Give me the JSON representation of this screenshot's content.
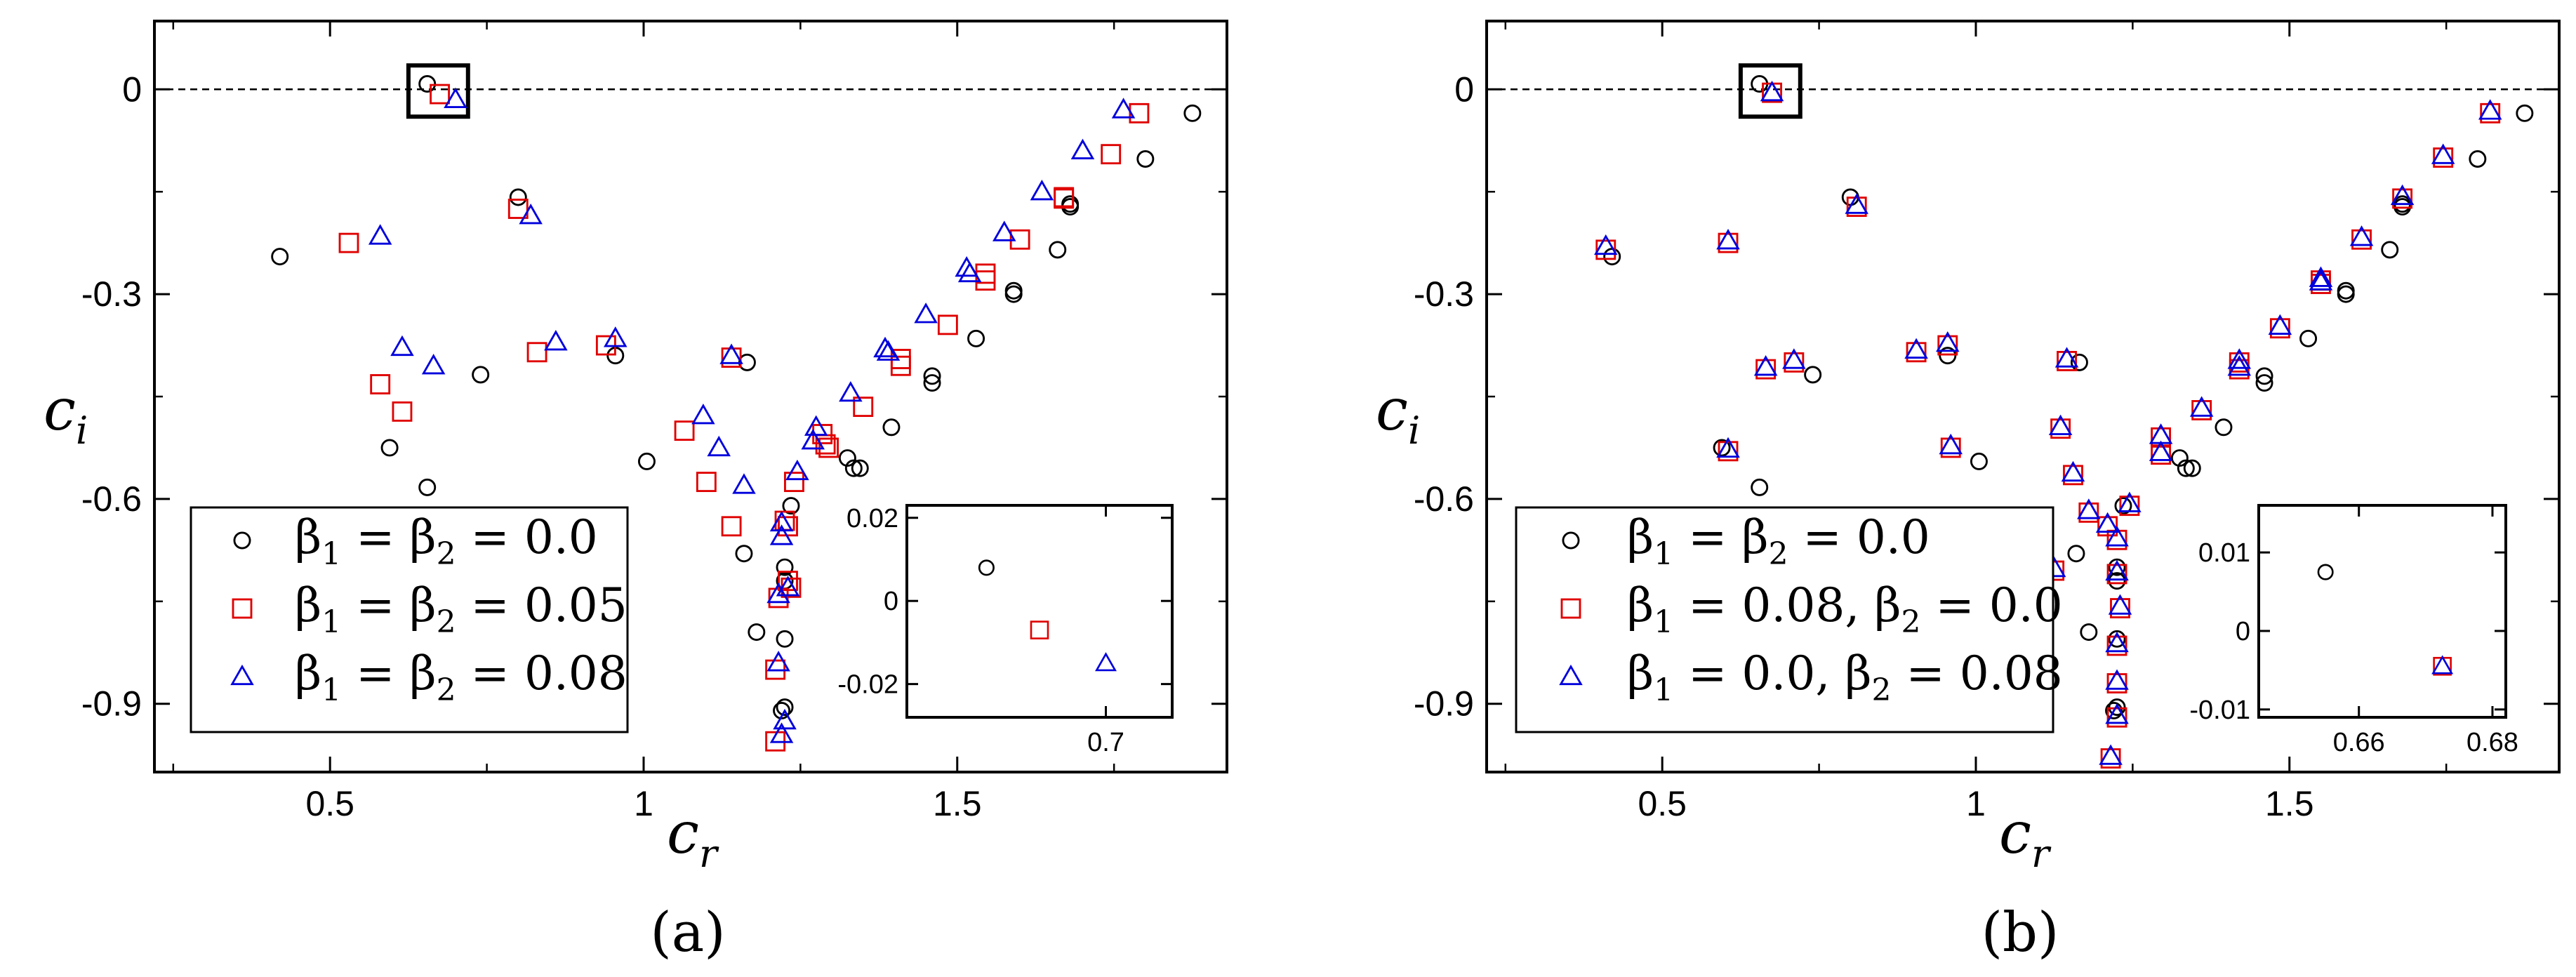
{
  "chart_data": [
    {
      "panel": "(a)",
      "type": "scatter",
      "xlabel": "c",
      "xlabel_sub": "r",
      "ylabel": "c",
      "ylabel_sub": "i",
      "xlim": [
        0.22,
        1.93
      ],
      "ylim": [
        -1.0,
        0.1
      ],
      "xticks": [
        0.5,
        1,
        1.5
      ],
      "xtick_labels": [
        "0.5",
        "1",
        "1.5"
      ],
      "yticks": [
        0,
        -0.3,
        -0.6,
        -0.9
      ],
      "ytick_labels": [
        "0",
        "-0.3",
        "-0.6",
        "-0.9"
      ],
      "legend_position": "bottom-left",
      "series": [
        {
          "name": "β1 = β2 = 0.0",
          "legend": [
            "β",
            "1",
            " = β",
            "2",
            " = 0.0"
          ],
          "marker": "circle",
          "color": "#000000",
          "points": [
            [
              0.655,
              0.008
            ],
            [
              0.8,
              -0.158
            ],
            [
              0.42,
              -0.245
            ],
            [
              0.74,
              -0.418
            ],
            [
              0.955,
              -0.39
            ],
            [
              1.165,
              -0.4
            ],
            [
              0.595,
              -0.525
            ],
            [
              0.655,
              -0.583
            ],
            [
              1.005,
              -0.545
            ],
            [
              1.335,
              -0.555
            ],
            [
              1.325,
              -0.54
            ],
            [
              1.345,
              -0.555
            ],
            [
              1.395,
              -0.495
            ],
            [
              1.235,
              -0.61
            ],
            [
              1.16,
              -0.68
            ],
            [
              1.18,
              -0.795
            ],
            [
              1.225,
              -0.7
            ],
            [
              1.225,
              -0.72
            ],
            [
              1.225,
              -0.805
            ],
            [
              1.225,
              -0.905
            ],
            [
              1.22,
              -0.91
            ],
            [
              1.46,
              -0.42
            ],
            [
              1.46,
              -0.43
            ],
            [
              1.53,
              -0.365
            ],
            [
              1.59,
              -0.295
            ],
            [
              1.59,
              -0.3
            ],
            [
              1.66,
              -0.235
            ],
            [
              1.68,
              -0.168
            ],
            [
              1.68,
              -0.172
            ],
            [
              1.8,
              -0.102
            ],
            [
              1.875,
              -0.035
            ]
          ]
        },
        {
          "name": "β1 = β2 = 0.05",
          "legend": [
            "β",
            "1",
            " = β",
            "2",
            " = 0.05"
          ],
          "marker": "square",
          "color": "#e00000",
          "points": [
            [
              0.675,
              -0.007
            ],
            [
              0.53,
              -0.225
            ],
            [
              0.8,
              -0.175
            ],
            [
              0.58,
              -0.432
            ],
            [
              0.615,
              -0.472
            ],
            [
              0.83,
              -0.385
            ],
            [
              0.94,
              -0.375
            ],
            [
              1.14,
              -0.393
            ],
            [
              1.065,
              -0.5
            ],
            [
              1.1,
              -0.575
            ],
            [
              1.14,
              -0.64
            ],
            [
              1.215,
              -0.745
            ],
            [
              1.21,
              -0.85
            ],
            [
              1.21,
              -0.955
            ],
            [
              1.225,
              -0.632
            ],
            [
              1.23,
              -0.64
            ],
            [
              1.23,
              -0.72
            ],
            [
              1.235,
              -0.73
            ],
            [
              1.24,
              -0.575
            ],
            [
              1.285,
              -0.505
            ],
            [
              1.29,
              -0.52
            ],
            [
              1.295,
              -0.525
            ],
            [
              1.35,
              -0.465
            ],
            [
              1.41,
              -0.395
            ],
            [
              1.41,
              -0.405
            ],
            [
              1.485,
              -0.345
            ],
            [
              1.545,
              -0.27
            ],
            [
              1.545,
              -0.28
            ],
            [
              1.6,
              -0.22
            ],
            [
              1.67,
              -0.158
            ],
            [
              1.67,
              -0.16
            ],
            [
              1.745,
              -0.095
            ],
            [
              1.79,
              -0.035
            ]
          ]
        },
        {
          "name": "β1 = β2 = 0.08",
          "legend": [
            "β",
            "1",
            " = β",
            "2",
            " = 0.08"
          ],
          "marker": "triangle",
          "color": "#0000dd",
          "points": [
            [
              0.7,
              -0.015
            ],
            [
              0.58,
              -0.215
            ],
            [
              0.82,
              -0.185
            ],
            [
              0.615,
              -0.378
            ],
            [
              0.665,
              -0.405
            ],
            [
              0.86,
              -0.37
            ],
            [
              0.955,
              -0.365
            ],
            [
              1.14,
              -0.39
            ],
            [
              1.095,
              -0.478
            ],
            [
              1.12,
              -0.525
            ],
            [
              1.16,
              -0.58
            ],
            [
              1.22,
              -0.635
            ],
            [
              1.22,
              -0.655
            ],
            [
              1.215,
              -0.74
            ],
            [
              1.215,
              -0.84
            ],
            [
              1.22,
              -0.945
            ],
            [
              1.225,
              -0.925
            ],
            [
              1.23,
              -0.73
            ],
            [
              1.245,
              -0.56
            ],
            [
              1.27,
              -0.515
            ],
            [
              1.275,
              -0.495
            ],
            [
              1.33,
              -0.445
            ],
            [
              1.385,
              -0.38
            ],
            [
              1.39,
              -0.385
            ],
            [
              1.45,
              -0.33
            ],
            [
              1.515,
              -0.262
            ],
            [
              1.52,
              -0.27
            ],
            [
              1.575,
              -0.21
            ],
            [
              1.635,
              -0.15
            ],
            [
              1.7,
              -0.09
            ],
            [
              1.765,
              -0.03
            ]
          ]
        }
      ],
      "inset": {
        "xlim": [
          0.625,
          0.725
        ],
        "ylim": [
          -0.028,
          0.023
        ],
        "xticks": [
          0.7
        ],
        "xtick_labels": [
          "0.7"
        ],
        "yticks": [
          0.02,
          0,
          -0.02
        ],
        "ytick_labels": [
          "0.02",
          "0",
          "-0.02"
        ],
        "points": [
          {
            "series": 0,
            "x": 0.655,
            "y": 0.008
          },
          {
            "series": 1,
            "x": 0.675,
            "y": -0.007
          },
          {
            "series": 2,
            "x": 0.7,
            "y": -0.015
          }
        ]
      },
      "highlight_box": {
        "x_range": [
          0.625,
          0.72
        ],
        "y_range": [
          -0.04,
          0.035
        ]
      }
    },
    {
      "panel": "(b)",
      "type": "scatter",
      "xlabel": "c",
      "xlabel_sub": "r",
      "ylabel": "c",
      "ylabel_sub": "i",
      "xlim": [
        0.22,
        1.93
      ],
      "ylim": [
        -1.0,
        0.1
      ],
      "xticks": [
        0.5,
        1,
        1.5
      ],
      "xtick_labels": [
        "0.5",
        "1",
        "1.5"
      ],
      "yticks": [
        0,
        -0.3,
        -0.6,
        -0.9
      ],
      "ytick_labels": [
        "0",
        "-0.3",
        "-0.6",
        "-0.9"
      ],
      "legend_position": "bottom-left",
      "series": [
        {
          "name": "β1 = β2 = 0.0",
          "legend": [
            "β",
            "1",
            " = β",
            "2",
            " = 0.0"
          ],
          "marker": "circle",
          "color": "#000000",
          "points": [
            [
              0.655,
              0.008
            ],
            [
              0.8,
              -0.158
            ],
            [
              0.42,
              -0.245
            ],
            [
              0.74,
              -0.418
            ],
            [
              0.955,
              -0.39
            ],
            [
              1.165,
              -0.4
            ],
            [
              0.595,
              -0.525
            ],
            [
              0.655,
              -0.583
            ],
            [
              1.005,
              -0.545
            ],
            [
              1.335,
              -0.555
            ],
            [
              1.325,
              -0.54
            ],
            [
              1.345,
              -0.555
            ],
            [
              1.395,
              -0.495
            ],
            [
              1.235,
              -0.61
            ],
            [
              1.16,
              -0.68
            ],
            [
              1.18,
              -0.795
            ],
            [
              1.225,
              -0.7
            ],
            [
              1.225,
              -0.72
            ],
            [
              1.225,
              -0.805
            ],
            [
              1.225,
              -0.905
            ],
            [
              1.22,
              -0.91
            ],
            [
              1.46,
              -0.42
            ],
            [
              1.46,
              -0.43
            ],
            [
              1.53,
              -0.365
            ],
            [
              1.59,
              -0.295
            ],
            [
              1.59,
              -0.3
            ],
            [
              1.66,
              -0.235
            ],
            [
              1.68,
              -0.168
            ],
            [
              1.68,
              -0.172
            ],
            [
              1.8,
              -0.102
            ],
            [
              1.875,
              -0.035
            ]
          ]
        },
        {
          "name": "β1 = 0.08, β2 = 0.0",
          "legend": [
            "β",
            "1",
            " = 0.08, β",
            "2",
            " = 0.0"
          ],
          "marker": "square",
          "color": "#e00000",
          "points": [
            [
              0.675,
              -0.005
            ],
            [
              0.41,
              -0.235
            ],
            [
              0.605,
              -0.225
            ],
            [
              0.81,
              -0.172
            ],
            [
              0.605,
              -0.53
            ],
            [
              0.665,
              -0.41
            ],
            [
              0.71,
              -0.4
            ],
            [
              0.905,
              -0.385
            ],
            [
              0.955,
              -0.375
            ],
            [
              0.96,
              -0.525
            ],
            [
              1.145,
              -0.398
            ],
            [
              1.135,
              -0.497
            ],
            [
              1.155,
              -0.565
            ],
            [
              1.18,
              -0.62
            ],
            [
              1.125,
              -0.705
            ],
            [
              1.21,
              -0.64
            ],
            [
              1.225,
              -0.66
            ],
            [
              1.225,
              -0.71
            ],
            [
              1.23,
              -0.76
            ],
            [
              1.225,
              -0.815
            ],
            [
              1.225,
              -0.87
            ],
            [
              1.225,
              -0.92
            ],
            [
              1.215,
              -0.98
            ],
            [
              1.245,
              -0.61
            ],
            [
              1.295,
              -0.51
            ],
            [
              1.295,
              -0.535
            ],
            [
              1.36,
              -0.47
            ],
            [
              1.42,
              -0.4
            ],
            [
              1.42,
              -0.41
            ],
            [
              1.485,
              -0.35
            ],
            [
              1.55,
              -0.28
            ],
            [
              1.55,
              -0.285
            ],
            [
              1.615,
              -0.22
            ],
            [
              1.68,
              -0.16
            ],
            [
              1.745,
              -0.1
            ],
            [
              1.82,
              -0.035
            ]
          ]
        },
        {
          "name": "β1 = 0.0, β2 = 0.08",
          "legend": [
            "β",
            "1",
            " = 0.0, β",
            "2",
            " = 0.08"
          ],
          "marker": "triangle",
          "color": "#0000dd",
          "points": [
            [
              0.675,
              -0.005
            ],
            [
              0.41,
              -0.23
            ],
            [
              0.605,
              -0.222
            ],
            [
              0.81,
              -0.17
            ],
            [
              0.605,
              -0.527
            ],
            [
              0.665,
              -0.407
            ],
            [
              0.71,
              -0.397
            ],
            [
              0.905,
              -0.382
            ],
            [
              0.955,
              -0.372
            ],
            [
              0.96,
              -0.522
            ],
            [
              1.145,
              -0.395
            ],
            [
              1.135,
              -0.494
            ],
            [
              1.155,
              -0.562
            ],
            [
              1.18,
              -0.617
            ],
            [
              1.125,
              -0.702
            ],
            [
              1.21,
              -0.637
            ],
            [
              1.225,
              -0.657
            ],
            [
              1.225,
              -0.707
            ],
            [
              1.23,
              -0.757
            ],
            [
              1.225,
              -0.812
            ],
            [
              1.225,
              -0.867
            ],
            [
              1.225,
              -0.917
            ],
            [
              1.215,
              -0.977
            ],
            [
              1.245,
              -0.607
            ],
            [
              1.295,
              -0.507
            ],
            [
              1.295,
              -0.532
            ],
            [
              1.36,
              -0.467
            ],
            [
              1.42,
              -0.397
            ],
            [
              1.42,
              -0.407
            ],
            [
              1.485,
              -0.347
            ],
            [
              1.55,
              -0.277
            ],
            [
              1.55,
              -0.282
            ],
            [
              1.615,
              -0.217
            ],
            [
              1.68,
              -0.157
            ],
            [
              1.745,
              -0.097
            ],
            [
              1.82,
              -0.032
            ]
          ]
        }
      ],
      "inset": {
        "xlim": [
          0.645,
          0.682
        ],
        "ylim": [
          -0.011,
          0.016
        ],
        "xticks": [
          0.66,
          0.68
        ],
        "xtick_labels": [
          "0.66",
          "0.68"
        ],
        "yticks": [
          0.01,
          0,
          -0.01
        ],
        "ytick_labels": [
          "0.01",
          "0",
          "-0.01"
        ],
        "points": [
          {
            "series": 0,
            "x": 0.655,
            "y": 0.0075
          },
          {
            "series": 1,
            "x": 0.6725,
            "y": -0.0045
          },
          {
            "series": 2,
            "x": 0.6725,
            "y": -0.0045
          }
        ]
      },
      "highlight_box": {
        "x_range": [
          0.625,
          0.72
        ],
        "y_range": [
          -0.04,
          0.035
        ]
      }
    }
  ],
  "panel_labels": [
    "(a)",
    "(b)"
  ]
}
